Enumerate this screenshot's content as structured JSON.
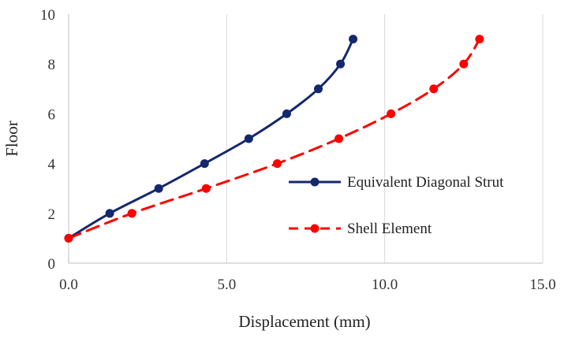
{
  "chart_data": {
    "type": "line",
    "xlabel": "Displacement (mm)",
    "ylabel": "Floor",
    "xlim": [
      0,
      15
    ],
    "ylim": [
      0,
      10
    ],
    "x_ticks": [
      0,
      5,
      10,
      15
    ],
    "y_ticks": [
      0,
      2,
      4,
      6,
      8,
      10
    ],
    "x_tick_labels": [
      "0.0",
      "5.0",
      "10.0",
      "15.0"
    ],
    "y_tick_labels": [
      "0",
      "2",
      "4",
      "6",
      "8",
      "10"
    ],
    "grid": "vertical",
    "legend_position": "right",
    "series": [
      {
        "name": "Equivalent Diagonal Strut",
        "color": "#14286e",
        "line_style": "solid",
        "marker": "circle",
        "x": [
          0.0,
          1.3,
          2.85,
          4.3,
          5.7,
          6.9,
          7.9,
          8.6,
          9.0
        ],
        "y": [
          1,
          2,
          3,
          4,
          5,
          6,
          7,
          8,
          9
        ]
      },
      {
        "name": "Shell Element",
        "color": "#ff0000",
        "line_style": "dashed",
        "marker": "circle",
        "x": [
          0.0,
          2.0,
          4.35,
          6.6,
          8.55,
          10.2,
          11.55,
          12.5,
          13.0
        ],
        "y": [
          1,
          2,
          3,
          4,
          5,
          6,
          7,
          8,
          9
        ]
      }
    ]
  }
}
